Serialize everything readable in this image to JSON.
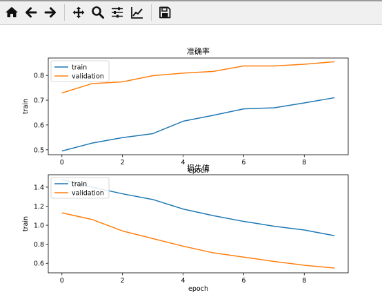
{
  "toolbar": {
    "buttons": [
      {
        "icon": "home-icon",
        "label": "Home"
      },
      {
        "icon": "back-arrow-icon",
        "label": "Back"
      },
      {
        "icon": "forward-arrow-icon",
        "label": "Forward"
      },
      {
        "icon": "pan-icon",
        "label": "Pan"
      },
      {
        "icon": "zoom-icon",
        "label": "Zoom"
      },
      {
        "icon": "configure-subplots-icon",
        "label": "Configure subplots"
      },
      {
        "icon": "edit-axis-icon",
        "label": "Edit axis"
      },
      {
        "icon": "save-icon",
        "label": "Save"
      }
    ]
  },
  "colors": {
    "train": "#1f77b4",
    "validation": "#ff7f0e"
  },
  "chart_data": [
    {
      "type": "line",
      "title": "准确率",
      "xlabel": "epoch",
      "ylabel": "train",
      "xlim": [
        -0.45,
        9.45
      ],
      "ylim": [
        0.48,
        0.87
      ],
      "xticks": [
        0,
        2,
        4,
        6,
        8
      ],
      "yticks": [
        0.5,
        0.6,
        0.7,
        0.8
      ],
      "ytick_labels": [
        "0.5",
        "0.6",
        "0.7",
        "0.8"
      ],
      "legend": "top-left",
      "x": [
        0,
        1,
        2,
        3,
        4,
        5,
        6,
        7,
        8,
        9
      ],
      "series": [
        {
          "name": "train",
          "values": [
            0.495,
            0.527,
            0.549,
            0.565,
            0.615,
            0.639,
            0.665,
            0.669,
            0.689,
            0.71
          ]
        },
        {
          "name": "validation",
          "values": [
            0.729,
            0.767,
            0.774,
            0.799,
            0.809,
            0.816,
            0.838,
            0.838,
            0.845,
            0.855
          ]
        }
      ]
    },
    {
      "type": "line",
      "title": "损失值",
      "xlabel": "epoch",
      "ylabel": "train",
      "xlim": [
        -0.45,
        9.45
      ],
      "ylim": [
        0.5,
        1.53
      ],
      "xticks": [
        0,
        2,
        4,
        6,
        8
      ],
      "yticks": [
        0.6,
        0.8,
        1.0,
        1.2,
        1.4
      ],
      "ytick_labels": [
        "0.6",
        "0.8",
        "1.0",
        "1.2",
        "1.4"
      ],
      "legend": "top-left",
      "x": [
        0,
        1,
        2,
        3,
        4,
        5,
        6,
        7,
        8,
        9
      ],
      "series": [
        {
          "name": "train",
          "values": [
            1.48,
            1.4,
            1.33,
            1.27,
            1.17,
            1.1,
            1.04,
            0.99,
            0.95,
            0.89
          ]
        },
        {
          "name": "validation",
          "values": [
            1.13,
            1.06,
            0.94,
            0.86,
            0.78,
            0.71,
            0.665,
            0.62,
            0.58,
            0.55
          ]
        }
      ]
    }
  ]
}
